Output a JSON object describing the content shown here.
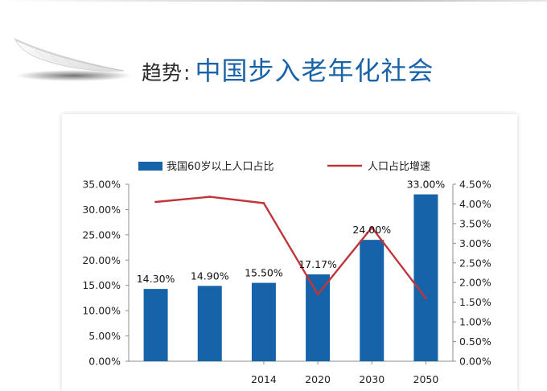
{
  "header": {
    "prefix": "趋势",
    "separator": ":",
    "title": "中国步入老年化社会"
  },
  "colors": {
    "bar": "#1763a9",
    "line": "#c0353a",
    "title": "#1a63a8"
  },
  "chart_data": {
    "type": "bar",
    "title": "",
    "xlabel": "",
    "ylabel": "",
    "grid": false,
    "legend_position": "top",
    "categories": [
      "",
      "",
      "2014",
      "2020",
      "2030",
      "2050"
    ],
    "series": [
      {
        "name": "我国60岁以上人口占比",
        "type": "bar",
        "axis": "left",
        "values": [
          14.3,
          14.9,
          15.5,
          17.17,
          24.0,
          33.0
        ],
        "labels": [
          "14.30%",
          "14.90%",
          "15.50%",
          "17.17%",
          "24.00%",
          "33.00%"
        ]
      },
      {
        "name": "人口占比增速",
        "type": "line",
        "axis": "right",
        "values": [
          4.05,
          4.18,
          4.02,
          1.7,
          3.4,
          1.6
        ]
      }
    ],
    "y_left": {
      "ylim": [
        0,
        35
      ],
      "ticks": [
        "0.00%",
        "5.00%",
        "10.00%",
        "15.00%",
        "20.00%",
        "25.00%",
        "30.00%",
        "35.00%"
      ]
    },
    "y_right": {
      "ylim": [
        0,
        4.5
      ],
      "ticks": [
        "0.00%",
        "0.50%",
        "1.00%",
        "1.50%",
        "2.00%",
        "2.50%",
        "3.00%",
        "3.50%",
        "4.00%",
        "4.50%"
      ]
    }
  }
}
